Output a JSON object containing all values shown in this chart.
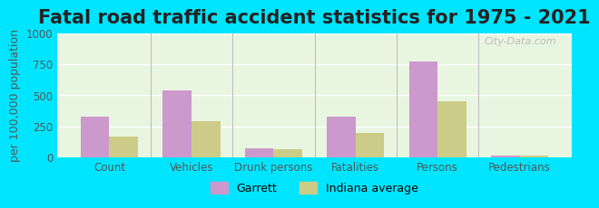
{
  "title": "Fatal road traffic accident statistics for 1975 - 2021",
  "ylabel": "per 100,000 population",
  "categories": [
    "Count",
    "Vehicles",
    "Drunk persons",
    "Fatalities",
    "Persons",
    "Pedestrians"
  ],
  "garrett_values": [
    325,
    540,
    75,
    325,
    770,
    18
  ],
  "indiana_values": [
    165,
    295,
    68,
    195,
    455,
    15
  ],
  "garrett_color": "#cc99cc",
  "indiana_color": "#cccc88",
  "background_color": "#e8f5e0",
  "outer_background": "#00e5ff",
  "ylim": [
    0,
    1000
  ],
  "yticks": [
    0,
    250,
    500,
    750,
    1000
  ],
  "bar_width": 0.35,
  "legend_labels": [
    "Garrett",
    "Indiana average"
  ],
  "watermark": "City-Data.com",
  "title_fontsize": 15,
  "label_fontsize": 9,
  "tick_fontsize": 8.5
}
